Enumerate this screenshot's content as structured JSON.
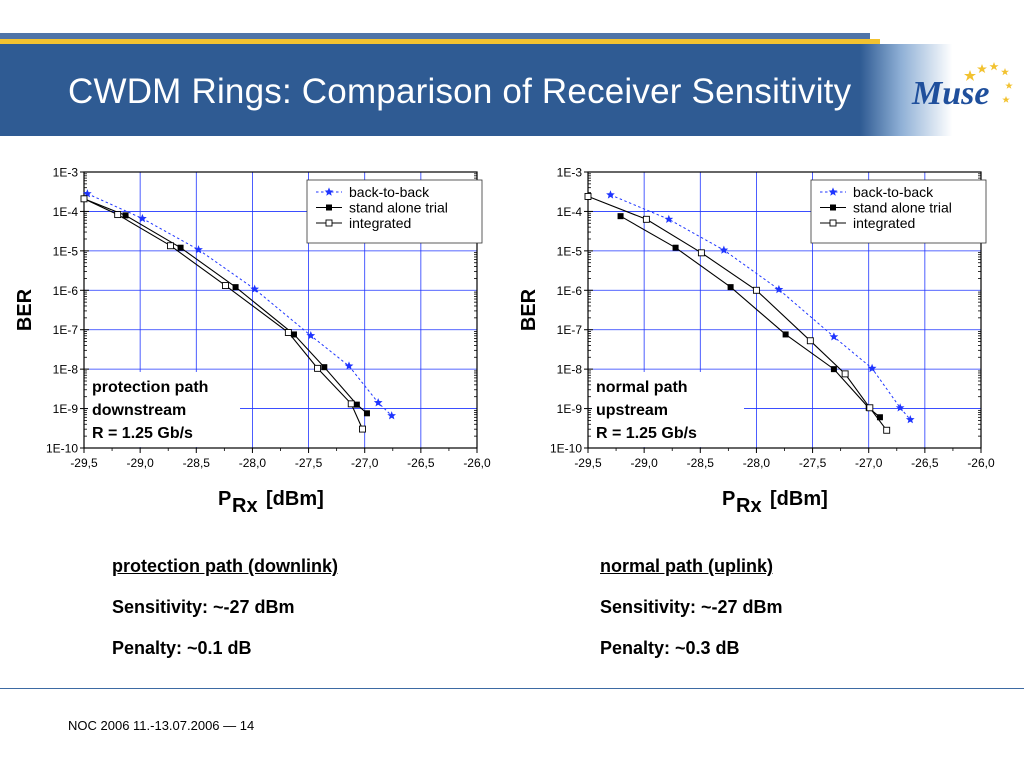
{
  "slide": {
    "title": "CWDM Rings: Comparison of Receiver Sensitivity",
    "footer": "NOC 2006 11.-13.07.2006 — 14"
  },
  "logo": {
    "text": "Muse",
    "colors": {
      "blue": "#1f4f9c",
      "gold": "#f2c230",
      "star": "#f2c230"
    }
  },
  "colors": {
    "header": "#2f5b93",
    "stripe": "#4f74a8",
    "gold": "#f2c230",
    "grid": "#1f35ff",
    "series_b2b": "#1f35ff"
  },
  "captions": {
    "left": {
      "heading": "protection path (downlink)",
      "sensitivity": "Sensitivity: ~-27 dBm",
      "penalty": "Penalty: ~0.1 dB"
    },
    "right": {
      "heading": "normal path (uplink)",
      "sensitivity": "Sensitivity: ~-27 dBm",
      "penalty": "Penalty: ~0.3 dB"
    }
  },
  "chart_data": [
    {
      "type": "line",
      "ylabel": "BER",
      "xlabel_main": "P",
      "xlabel_sub": "Rx",
      "xlabel_unit": "[dBm]",
      "xlim": [
        -29.5,
        -26.0
      ],
      "ylim_exp": [
        -10,
        -3
      ],
      "y_scale": "log",
      "grid": true,
      "legend_position": "top-right",
      "x_ticks": [
        "-29,5",
        "-29,0",
        "-28,5",
        "-28,0",
        "-27,5",
        "-27,0",
        "-26,5",
        "-26,0"
      ],
      "y_ticks": [
        "1E-3",
        "1E-4",
        "1E-5",
        "1E-6",
        "1E-7",
        "1E-8",
        "1E-9",
        "1E-10"
      ],
      "annotation": [
        "protection path",
        "downstream",
        "R = 1.25 Gb/s"
      ],
      "series": [
        {
          "name": "back-to-back",
          "marker": "star",
          "style": "dotted",
          "color": "#1f35ff",
          "x": [
            -29.47,
            -28.98,
            -28.48,
            -27.98,
            -27.48,
            -27.14,
            -26.88,
            -26.76
          ],
          "exp": [
            -3.55,
            -4.18,
            -4.97,
            -5.97,
            -7.15,
            -7.92,
            -8.85,
            -9.18
          ]
        },
        {
          "name": "stand alone trial",
          "marker": "square-filled",
          "style": "solid",
          "color": "#000000",
          "x": [
            -29.5,
            -29.13,
            -28.64,
            -28.15,
            -27.63,
            -27.36,
            -27.07,
            -26.98
          ],
          "exp": [
            -3.68,
            -4.1,
            -4.92,
            -5.92,
            -7.12,
            -7.95,
            -8.9,
            -9.12
          ]
        },
        {
          "name": "integrated",
          "marker": "square-open",
          "style": "solid",
          "color": "#000000",
          "x": [
            -29.5,
            -29.2,
            -28.73,
            -28.24,
            -27.68,
            -27.42,
            -27.12,
            -27.02
          ],
          "exp": [
            -3.68,
            -4.08,
            -4.87,
            -5.88,
            -7.07,
            -7.98,
            -8.88,
            -9.52
          ]
        }
      ]
    },
    {
      "type": "line",
      "ylabel": "BER",
      "xlabel_main": "P",
      "xlabel_sub": "Rx",
      "xlabel_unit": "[dBm]",
      "xlim": [
        -29.5,
        -26.0
      ],
      "ylim_exp": [
        -10,
        -3
      ],
      "y_scale": "log",
      "grid": true,
      "legend_position": "top-right",
      "x_ticks": [
        "-29,5",
        "-29,0",
        "-28,5",
        "-28,0",
        "-27,5",
        "-27,0",
        "-26,5",
        "-26,0"
      ],
      "y_ticks": [
        "1E-3",
        "1E-4",
        "1E-5",
        "1E-6",
        "1E-7",
        "1E-8",
        "1E-9",
        "1E-10"
      ],
      "annotation": [
        "normal path",
        "upstream",
        "R = 1.25 Gb/s"
      ],
      "series": [
        {
          "name": "back-to-back",
          "marker": "star",
          "style": "dotted",
          "color": "#1f35ff",
          "x": [
            -29.3,
            -28.78,
            -28.29,
            -27.8,
            -27.31,
            -26.97,
            -26.72,
            -26.63
          ],
          "exp": [
            -3.58,
            -4.2,
            -4.98,
            -5.98,
            -7.18,
            -7.98,
            -8.98,
            -9.28
          ]
        },
        {
          "name": "stand alone trial",
          "marker": "square-filled",
          "style": "solid",
          "color": "#000000",
          "x": [
            -29.21,
            -28.72,
            -28.23,
            -27.74,
            -27.31,
            -27.0,
            -26.9
          ],
          "exp": [
            -4.12,
            -4.92,
            -5.92,
            -7.12,
            -8.0,
            -8.98,
            -9.22
          ]
        },
        {
          "name": "integrated",
          "marker": "square-open",
          "style": "solid",
          "color": "#000000",
          "x": [
            -29.5,
            -28.98,
            -28.49,
            -28.0,
            -27.52,
            -27.21,
            -26.99,
            -26.84
          ],
          "exp": [
            -3.62,
            -4.2,
            -5.05,
            -6.0,
            -7.28,
            -8.12,
            -8.98,
            -9.55
          ]
        }
      ]
    }
  ]
}
